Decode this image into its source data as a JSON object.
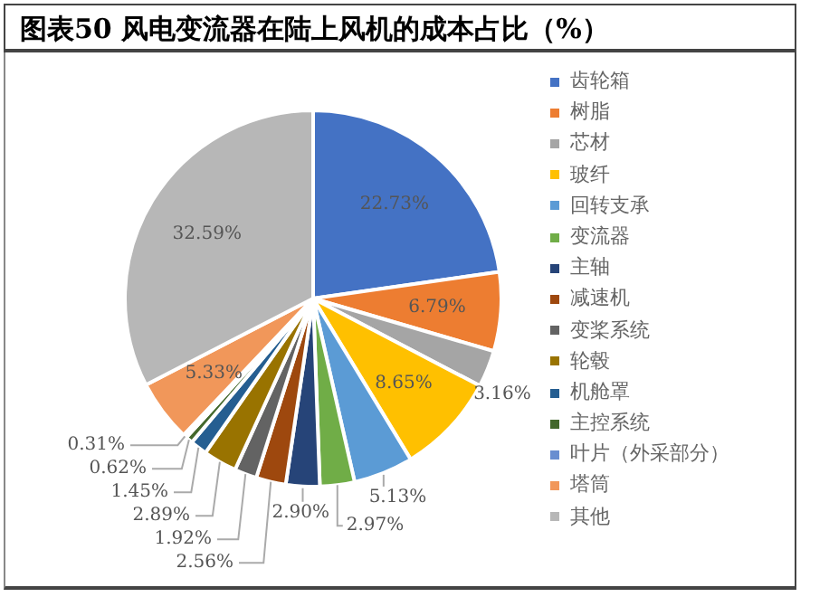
{
  "chart_data": {
    "type": "pie",
    "title": "图表50 风电变流器在陆上风机的成本占比（%）",
    "categories": [
      "齿轮箱",
      "树脂",
      "芯材",
      "玻纤",
      "回转支承",
      "变流器",
      "主轴",
      "减速机",
      "变桨系统",
      "轮毂",
      "机舱罩",
      "主控系统",
      "叶片（外采部分）",
      "塔筒",
      "其他"
    ],
    "values": [
      22.73,
      6.79,
      3.16,
      8.65,
      5.13,
      2.97,
      2.9,
      2.56,
      1.92,
      2.89,
      1.45,
      0.62,
      0.31,
      5.33,
      32.59
    ],
    "colors": [
      "#4472c4",
      "#ed7d31",
      "#a5a5a5",
      "#ffc000",
      "#5b9bd5",
      "#70ad47",
      "#264478",
      "#9e480e",
      "#636363",
      "#997300",
      "#255e91",
      "#43682b",
      "#698ed0",
      "#f1975a",
      "#b7b7b7"
    ],
    "value_labels": [
      "22.73%",
      "6.79%",
      "3.16%",
      "8.65%",
      "5.13%",
      "2.97%",
      "2.90%",
      "2.56%",
      "1.92%",
      "2.89%",
      "1.45%",
      "0.62%",
      "0.31%",
      "5.33%",
      "32.59%"
    ],
    "legend": "right"
  }
}
